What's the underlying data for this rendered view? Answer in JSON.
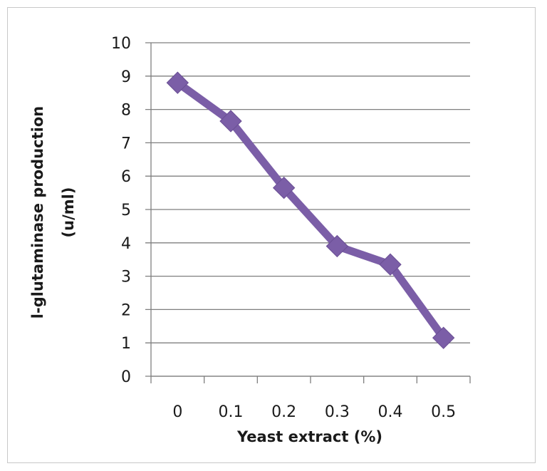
{
  "chart_data": {
    "type": "line",
    "title": "",
    "xlabel": "Yeast extract (%)",
    "ylabel_line1": "l-glutaminase  production",
    "ylabel_line2": "(u/ml)",
    "categories": [
      "0",
      "0.1",
      "0.2",
      "0.3",
      "0.4",
      "0.5"
    ],
    "series": [
      {
        "values": [
          8.8,
          7.65,
          5.65,
          3.9,
          3.35,
          1.15
        ],
        "color": "#7b5ea7"
      }
    ],
    "ylim": [
      0,
      10
    ],
    "yticks": [
      "0",
      "1",
      "2",
      "3",
      "4",
      "5",
      "6",
      "7",
      "8",
      "9",
      "10"
    ],
    "grid": "horizontal",
    "marker": "diamond",
    "colors": {
      "grid": "#7f7f7f",
      "axis": "#7f7f7f",
      "series": "#7b5ea7"
    }
  }
}
